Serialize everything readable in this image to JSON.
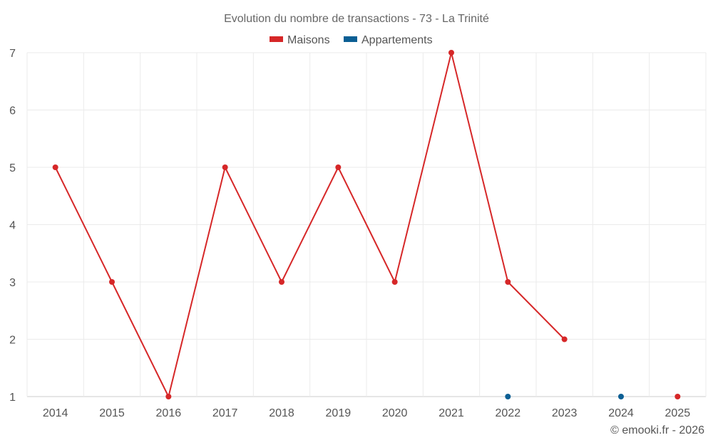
{
  "chart_data": {
    "type": "line",
    "title": "Evolution du nombre de transactions - 73 - La Trinité",
    "categories": [
      "2014",
      "2015",
      "2016",
      "2017",
      "2018",
      "2019",
      "2020",
      "2021",
      "2022",
      "2023",
      "2024",
      "2025"
    ],
    "series": [
      {
        "name": "Maisons",
        "color": "#d62728",
        "values": [
          5,
          3,
          1,
          5,
          3,
          5,
          3,
          7,
          3,
          2,
          null,
          1
        ]
      },
      {
        "name": "Appartements",
        "color": "#0b5f94",
        "values": [
          null,
          null,
          null,
          null,
          null,
          null,
          null,
          null,
          1,
          null,
          1,
          null
        ]
      }
    ],
    "ylim": [
      1,
      7
    ],
    "yticks": [
      1,
      2,
      3,
      4,
      5,
      6,
      7
    ],
    "grid": true,
    "legend_position": "top-center",
    "credit": "© emooki.fr - 2026"
  }
}
